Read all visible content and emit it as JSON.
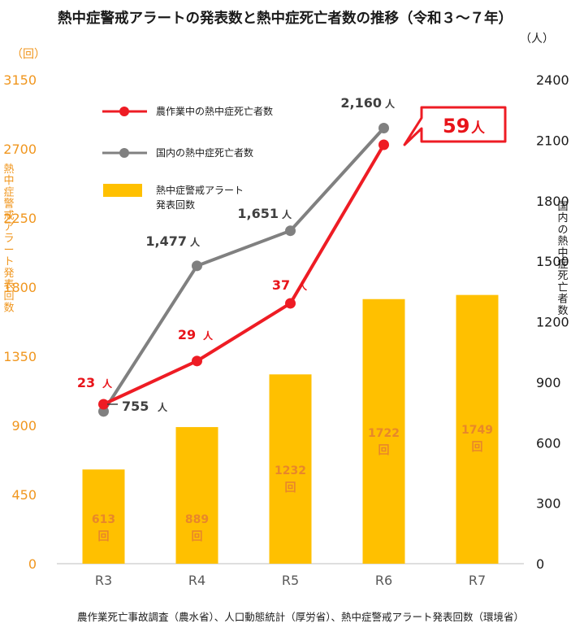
{
  "title": "熱中症警戒アラートの発表数と熱中症死亡者数の推移（令和３～７年）",
  "source": "農作業死亡事故調査（農水省）、人口動態統計（厚労省）、熱中症警戒アラート発表回数（環境省）",
  "chart_data": {
    "type": "bar",
    "categories": [
      "R3",
      "R4",
      "R5",
      "R6",
      "R7"
    ],
    "y_left": {
      "label": "熱中症警戒アラート発表回数",
      "unit": "（回）",
      "ylim": [
        0,
        3150
      ],
      "ticks": [
        0,
        450,
        900,
        1350,
        1800,
        2250,
        2700,
        3150
      ]
    },
    "y_right": {
      "label": "国内の熱中症死亡者数",
      "unit": "（人）",
      "ylim": [
        0,
        2400
      ],
      "ticks": [
        0,
        300,
        600,
        900,
        1200,
        1500,
        1800,
        2100,
        2400
      ]
    },
    "bars": {
      "name": "熱中症警戒アラート\n発表回数",
      "axis": "left",
      "color": "#ffc000",
      "values": [
        613,
        889,
        1232,
        1722,
        1749
      ],
      "labels": [
        "613",
        "889",
        "1232",
        "1722",
        "1749"
      ],
      "unit_label": "回"
    },
    "lines": [
      {
        "name": "国内の熱中症死亡者数",
        "axis": "right",
        "color": "#808080",
        "values": [
          755,
          1477,
          1651,
          2160
        ],
        "labels": [
          "755",
          "1,477",
          "1,651",
          "2,160"
        ],
        "unit_label": "人"
      },
      {
        "name": "農作業中の熱中症死亡者数",
        "axis": "left",
        "color": "#ee1c24",
        "values": [
          23,
          29,
          37,
          59
        ],
        "labels": [
          "23",
          "29",
          "37",
          "59"
        ],
        "unit_label": "人"
      }
    ],
    "legend_position": "top-left",
    "callout": {
      "value": "59",
      "unit": "人"
    }
  }
}
